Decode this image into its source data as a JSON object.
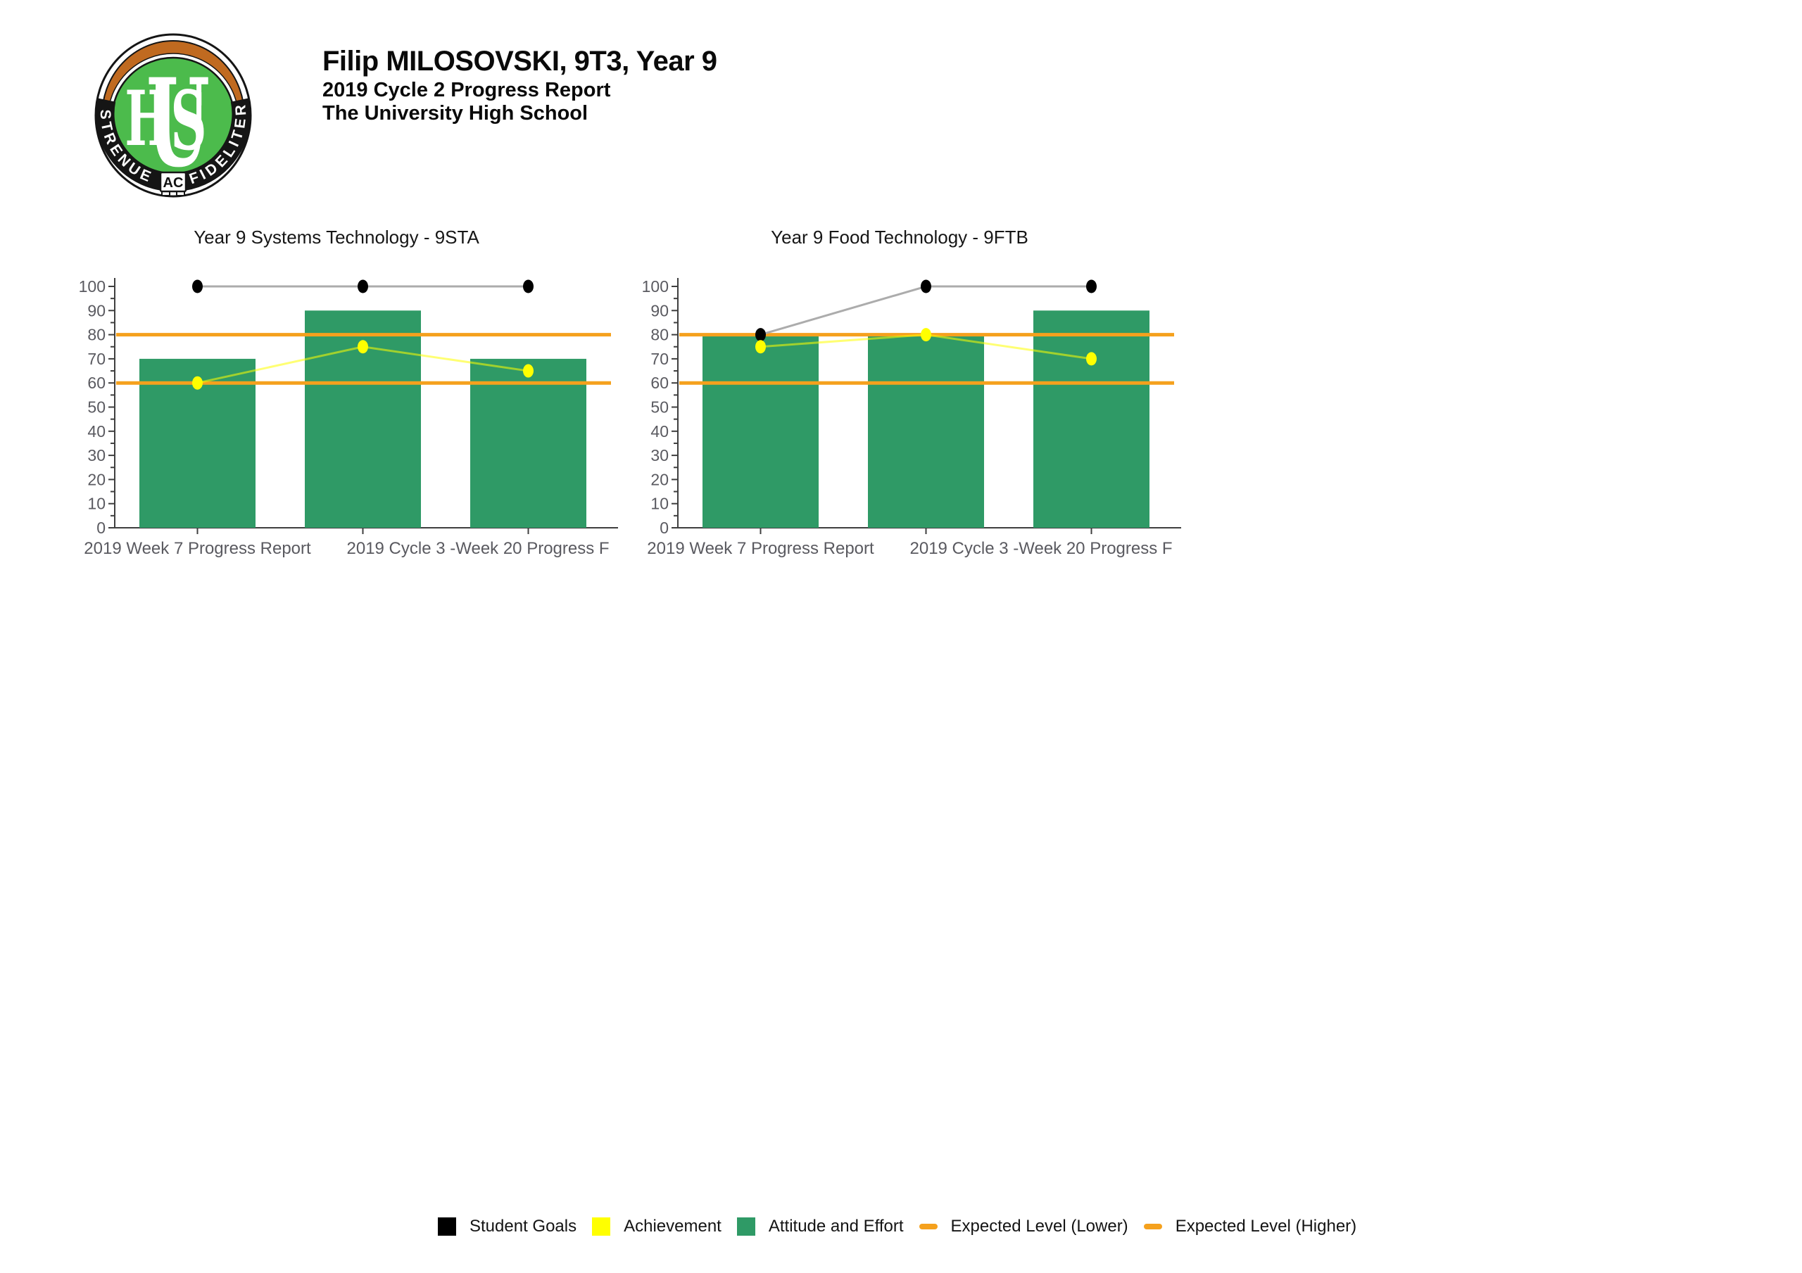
{
  "header": {
    "student_line": "Filip MILOSOVSKI, 9T3, Year 9",
    "report_line": "2019 Cycle 2 Progress Report",
    "school_line": "The University High School"
  },
  "logo": {
    "motto_left": "STRENUE",
    "motto_center": "AC",
    "motto_right": "FIDELITER",
    "monogram_letters": [
      "U",
      "H",
      "S"
    ],
    "colors": {
      "orange": "#C06A20",
      "green": "#4CBB4C",
      "black": "#151515",
      "white": "#FFFFFF"
    }
  },
  "legend": [
    {
      "label": "Student Goals",
      "swatch": "square",
      "color": "#000000"
    },
    {
      "label": "Achievement",
      "swatch": "square",
      "color": "#FFFF00"
    },
    {
      "label": "Attitude and Effort",
      "swatch": "square",
      "color": "#2F9A66"
    },
    {
      "label": "Expected Level (Lower)",
      "swatch": "dash",
      "color": "#F5A11D"
    },
    {
      "label": "Expected Level (Higher)",
      "swatch": "dash",
      "color": "#F5A11D"
    }
  ],
  "chart_data": [
    {
      "type": "bar",
      "title": "Year 9 Systems Technology - 9STA",
      "tick_labels": [
        "2019 Week 7 Progress Report",
        "",
        "2019 Cycle 3 -Week 20 Progress F"
      ],
      "ylim": [
        0,
        100
      ],
      "ytick_step": 10,
      "yminor_step": 5,
      "grid": false,
      "legend_position": "bottom-shared",
      "series": [
        {
          "name": "Attitude and Effort",
          "type": "bar",
          "color": "#2F9A66",
          "values": [
            70,
            90,
            70
          ]
        },
        {
          "name": "Student Goals",
          "type": "line",
          "dot_color": "#000000",
          "line_color": "#ACACAC",
          "values": [
            100,
            100,
            100
          ]
        },
        {
          "name": "Achievement",
          "type": "line",
          "dot_color": "#FFFF00",
          "line_color": "rgba(255,255,0,0.55)",
          "values": [
            60,
            75,
            65
          ]
        }
      ],
      "reference_lines": [
        {
          "name": "Expected Level (Lower)",
          "value": 60,
          "color": "#F5A11D"
        },
        {
          "name": "Expected Level (Higher)",
          "value": 80,
          "color": "#F5A11D"
        }
      ]
    },
    {
      "type": "bar",
      "title": "Year 9 Food Technology - 9FTB",
      "tick_labels": [
        "2019 Week 7 Progress Report",
        "",
        "2019 Cycle 3 -Week 20 Progress F"
      ],
      "ylim": [
        0,
        100
      ],
      "ytick_step": 10,
      "yminor_step": 5,
      "grid": false,
      "legend_position": "bottom-shared",
      "series": [
        {
          "name": "Attitude and Effort",
          "type": "bar",
          "color": "#2F9A66",
          "values": [
            80,
            80,
            90
          ]
        },
        {
          "name": "Student Goals",
          "type": "line",
          "dot_color": "#000000",
          "line_color": "#ACACAC",
          "values": [
            80,
            100,
            100
          ]
        },
        {
          "name": "Achievement",
          "type": "line",
          "dot_color": "#FFFF00",
          "line_color": "rgba(255,255,0,0.55)",
          "values": [
            75,
            80,
            70
          ]
        }
      ],
      "reference_lines": [
        {
          "name": "Expected Level (Lower)",
          "value": 60,
          "color": "#F5A11D"
        },
        {
          "name": "Expected Level (Higher)",
          "value": 80,
          "color": "#F5A11D"
        }
      ]
    }
  ]
}
